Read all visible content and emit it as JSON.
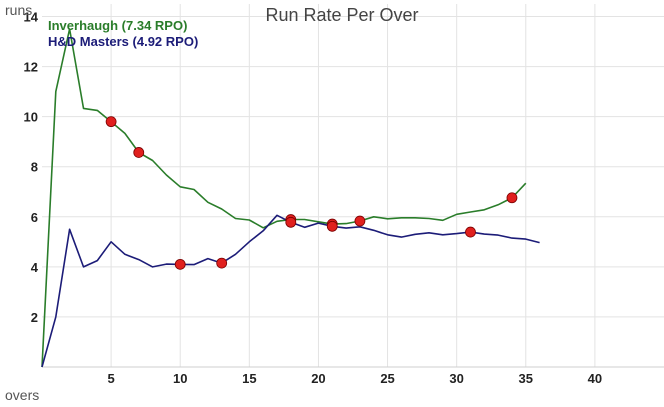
{
  "chart_data": {
    "type": "line",
    "title": "Run Rate Per Over",
    "xlabel": "overs",
    "ylabel": "runs",
    "xlim": [
      0,
      45
    ],
    "ylim": [
      0,
      14.5
    ],
    "xticks": [
      5,
      10,
      15,
      20,
      25,
      30,
      35,
      40
    ],
    "yticks": [
      2,
      4,
      6,
      8,
      10,
      12,
      14
    ],
    "grid": true,
    "legend_position": "top-left",
    "series": [
      {
        "name": "Inverhaugh (7.34 RPO)",
        "color": "#2a7d2a",
        "x": [
          0,
          1,
          2,
          3,
          4,
          5,
          6,
          7,
          8,
          9,
          10,
          11,
          12,
          13,
          14,
          15,
          16,
          17,
          18,
          19,
          20,
          21,
          22,
          23,
          24,
          25,
          26,
          27,
          28,
          29,
          30,
          31,
          32,
          33,
          34,
          35
        ],
        "values": [
          0,
          11.0,
          13.5,
          10.33,
          10.25,
          9.8,
          9.33,
          8.57,
          8.25,
          7.67,
          7.2,
          7.09,
          6.58,
          6.31,
          5.93,
          5.87,
          5.56,
          5.82,
          5.89,
          5.89,
          5.8,
          5.71,
          5.73,
          5.83,
          6.0,
          5.92,
          5.96,
          5.96,
          5.93,
          5.86,
          6.1,
          6.19,
          6.28,
          6.48,
          6.76,
          7.34
        ],
        "wickets_x": [
          5,
          7,
          18,
          21,
          23,
          34
        ],
        "wickets_y": [
          9.8,
          8.57,
          5.89,
          5.71,
          5.83,
          6.76
        ]
      },
      {
        "name": "H&D Masters (4.92 RPO)",
        "color": "#1c1c78",
        "x": [
          0,
          1,
          2,
          3,
          4,
          5,
          6,
          7,
          8,
          9,
          10,
          11,
          12,
          13,
          14,
          15,
          16,
          17,
          18,
          19,
          20,
          21,
          22,
          23,
          24,
          25,
          26,
          27,
          28,
          29,
          30,
          31,
          32,
          33,
          34,
          35,
          36
        ],
        "values": [
          0,
          2.0,
          5.5,
          4.0,
          4.25,
          5.0,
          4.5,
          4.29,
          4.0,
          4.11,
          4.1,
          4.09,
          4.33,
          4.15,
          4.5,
          5.0,
          5.44,
          6.06,
          5.78,
          5.58,
          5.75,
          5.62,
          5.55,
          5.6,
          5.46,
          5.28,
          5.19,
          5.3,
          5.36,
          5.28,
          5.33,
          5.39,
          5.31,
          5.27,
          5.15,
          5.11,
          4.97
        ],
        "wickets_x": [
          10,
          13,
          18,
          21,
          31
        ],
        "wickets_y": [
          4.1,
          4.15,
          5.78,
          5.62,
          5.39
        ]
      }
    ]
  },
  "colors": {
    "wicket_fill": "#e0201e",
    "wicket_stroke": "#7a0000"
  }
}
